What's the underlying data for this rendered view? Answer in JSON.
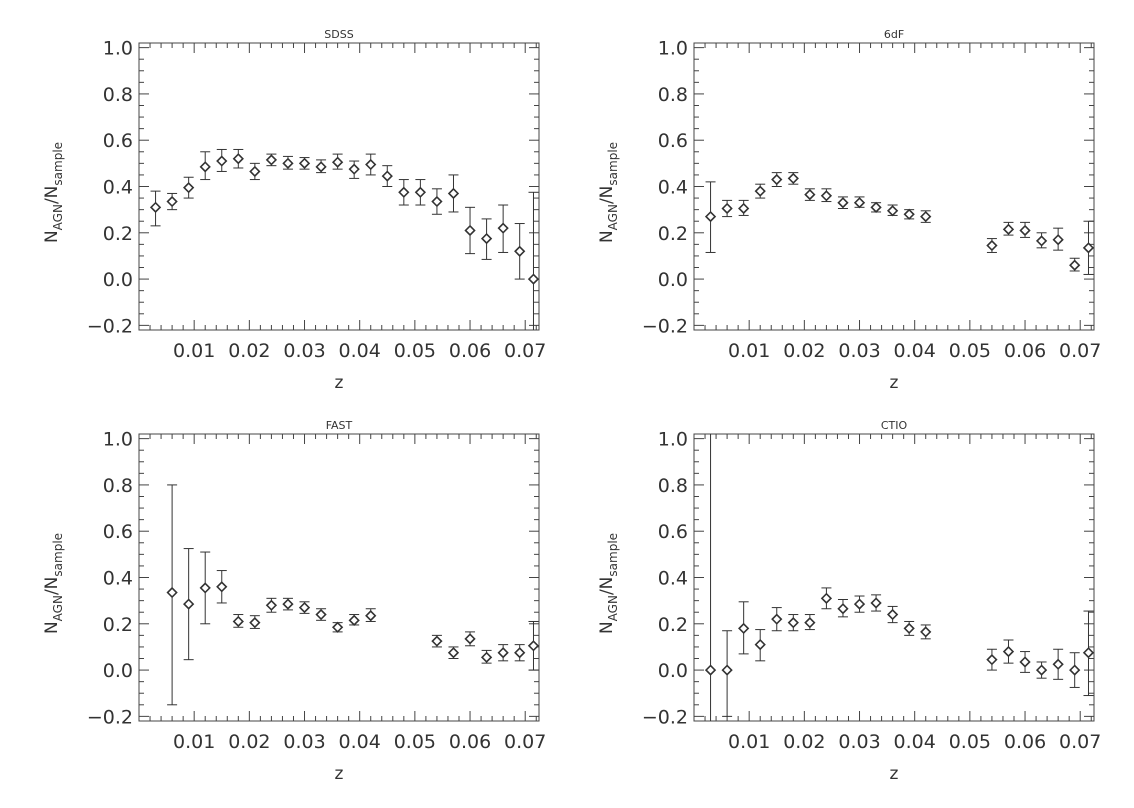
{
  "chart_data": [
    {
      "type": "scatter",
      "title": "SDSS",
      "xlabel": "z",
      "ylabel_main": "N",
      "ylabel_sub1": "AGN",
      "ylabel_sep": "/",
      "ylabel_main2": "N",
      "ylabel_sub2": "sample",
      "xlim": [
        0.0,
        0.0725
      ],
      "ylim": [
        -0.22,
        1.02
      ],
      "xticks": [
        0.01,
        0.02,
        0.03,
        0.04,
        0.05,
        0.06,
        0.07
      ],
      "xtick_labels": [
        "0.01",
        "0.02",
        "0.03",
        "0.04",
        "0.05",
        "0.06",
        "0.07"
      ],
      "yticks": [
        -0.2,
        0.0,
        0.2,
        0.4,
        0.6,
        0.8,
        1.0
      ],
      "ytick_labels": [
        "−0.2",
        "0.0",
        "0.2",
        "0.4",
        "0.6",
        "0.8",
        "1.0"
      ],
      "points": [
        {
          "x": 0.003,
          "y": 0.31,
          "lo": 0.23,
          "hi": 0.38
        },
        {
          "x": 0.006,
          "y": 0.335,
          "lo": 0.3,
          "hi": 0.37
        },
        {
          "x": 0.009,
          "y": 0.395,
          "lo": 0.35,
          "hi": 0.44
        },
        {
          "x": 0.012,
          "y": 0.485,
          "lo": 0.43,
          "hi": 0.55
        },
        {
          "x": 0.015,
          "y": 0.51,
          "lo": 0.465,
          "hi": 0.56
        },
        {
          "x": 0.018,
          "y": 0.52,
          "lo": 0.48,
          "hi": 0.56
        },
        {
          "x": 0.021,
          "y": 0.465,
          "lo": 0.43,
          "hi": 0.5
        },
        {
          "x": 0.024,
          "y": 0.515,
          "lo": 0.49,
          "hi": 0.54
        },
        {
          "x": 0.027,
          "y": 0.5,
          "lo": 0.475,
          "hi": 0.53
        },
        {
          "x": 0.03,
          "y": 0.5,
          "lo": 0.475,
          "hi": 0.525
        },
        {
          "x": 0.033,
          "y": 0.485,
          "lo": 0.46,
          "hi": 0.515
        },
        {
          "x": 0.036,
          "y": 0.505,
          "lo": 0.475,
          "hi": 0.54
        },
        {
          "x": 0.039,
          "y": 0.475,
          "lo": 0.435,
          "hi": 0.51
        },
        {
          "x": 0.042,
          "y": 0.495,
          "lo": 0.45,
          "hi": 0.54
        },
        {
          "x": 0.045,
          "y": 0.445,
          "lo": 0.4,
          "hi": 0.49
        },
        {
          "x": 0.048,
          "y": 0.375,
          "lo": 0.32,
          "hi": 0.43
        },
        {
          "x": 0.051,
          "y": 0.375,
          "lo": 0.32,
          "hi": 0.43
        },
        {
          "x": 0.054,
          "y": 0.335,
          "lo": 0.28,
          "hi": 0.39
        },
        {
          "x": 0.057,
          "y": 0.37,
          "lo": 0.29,
          "hi": 0.45
        },
        {
          "x": 0.06,
          "y": 0.21,
          "lo": 0.11,
          "hi": 0.31
        },
        {
          "x": 0.063,
          "y": 0.175,
          "lo": 0.085,
          "hi": 0.26
        },
        {
          "x": 0.066,
          "y": 0.22,
          "lo": 0.115,
          "hi": 0.32
        },
        {
          "x": 0.069,
          "y": 0.12,
          "lo": 0.0,
          "hi": 0.24
        },
        {
          "x": 0.0715,
          "y": 0.0,
          "lo": -0.22,
          "hi": 0.375
        }
      ]
    },
    {
      "type": "scatter",
      "title": "6dF",
      "xlabel": "z",
      "ylabel_main": "N",
      "ylabel_sub1": "AGN",
      "ylabel_sep": "/",
      "ylabel_main2": "N",
      "ylabel_sub2": "sample",
      "xlim": [
        0.0,
        0.0725
      ],
      "ylim": [
        -0.22,
        1.02
      ],
      "xticks": [
        0.01,
        0.02,
        0.03,
        0.04,
        0.05,
        0.06,
        0.07
      ],
      "xtick_labels": [
        "0.01",
        "0.02",
        "0.03",
        "0.04",
        "0.05",
        "0.06",
        "0.07"
      ],
      "yticks": [
        -0.2,
        0.0,
        0.2,
        0.4,
        0.6,
        0.8,
        1.0
      ],
      "ytick_labels": [
        "−0.2",
        "0.0",
        "0.2",
        "0.4",
        "0.6",
        "0.8",
        "1.0"
      ],
      "points": [
        {
          "x": 0.003,
          "y": 0.27,
          "lo": 0.115,
          "hi": 0.42
        },
        {
          "x": 0.006,
          "y": 0.305,
          "lo": 0.27,
          "hi": 0.34
        },
        {
          "x": 0.009,
          "y": 0.305,
          "lo": 0.275,
          "hi": 0.34
        },
        {
          "x": 0.012,
          "y": 0.38,
          "lo": 0.35,
          "hi": 0.41
        },
        {
          "x": 0.015,
          "y": 0.43,
          "lo": 0.4,
          "hi": 0.46
        },
        {
          "x": 0.018,
          "y": 0.435,
          "lo": 0.41,
          "hi": 0.46
        },
        {
          "x": 0.021,
          "y": 0.365,
          "lo": 0.34,
          "hi": 0.39
        },
        {
          "x": 0.024,
          "y": 0.36,
          "lo": 0.335,
          "hi": 0.39
        },
        {
          "x": 0.027,
          "y": 0.33,
          "lo": 0.305,
          "hi": 0.355
        },
        {
          "x": 0.03,
          "y": 0.33,
          "lo": 0.31,
          "hi": 0.355
        },
        {
          "x": 0.033,
          "y": 0.31,
          "lo": 0.29,
          "hi": 0.33
        },
        {
          "x": 0.036,
          "y": 0.295,
          "lo": 0.275,
          "hi": 0.32
        },
        {
          "x": 0.039,
          "y": 0.28,
          "lo": 0.26,
          "hi": 0.3
        },
        {
          "x": 0.042,
          "y": 0.27,
          "lo": 0.245,
          "hi": 0.295
        },
        {
          "x": 0.054,
          "y": 0.145,
          "lo": 0.115,
          "hi": 0.175
        },
        {
          "x": 0.057,
          "y": 0.215,
          "lo": 0.19,
          "hi": 0.245
        },
        {
          "x": 0.06,
          "y": 0.21,
          "lo": 0.18,
          "hi": 0.245
        },
        {
          "x": 0.063,
          "y": 0.165,
          "lo": 0.135,
          "hi": 0.2
        },
        {
          "x": 0.066,
          "y": 0.17,
          "lo": 0.125,
          "hi": 0.22
        },
        {
          "x": 0.069,
          "y": 0.06,
          "lo": 0.035,
          "hi": 0.09
        },
        {
          "x": 0.0715,
          "y": 0.135,
          "lo": 0.02,
          "hi": 0.25
        }
      ]
    },
    {
      "type": "scatter",
      "title": "FAST",
      "xlabel": "z",
      "ylabel_main": "N",
      "ylabel_sub1": "AGN",
      "ylabel_sep": "/",
      "ylabel_main2": "N",
      "ylabel_sub2": "sample",
      "xlim": [
        0.0,
        0.0725
      ],
      "ylim": [
        -0.22,
        1.02
      ],
      "xticks": [
        0.01,
        0.02,
        0.03,
        0.04,
        0.05,
        0.06,
        0.07
      ],
      "xtick_labels": [
        "0.01",
        "0.02",
        "0.03",
        "0.04",
        "0.05",
        "0.06",
        "0.07"
      ],
      "yticks": [
        -0.2,
        0.0,
        0.2,
        0.4,
        0.6,
        0.8,
        1.0
      ],
      "ytick_labels": [
        "−0.2",
        "0.0",
        "0.2",
        "0.4",
        "0.6",
        "0.8",
        "1.0"
      ],
      "points": [
        {
          "x": 0.006,
          "y": 0.335,
          "lo": -0.15,
          "hi": 0.8
        },
        {
          "x": 0.009,
          "y": 0.285,
          "lo": 0.045,
          "hi": 0.525
        },
        {
          "x": 0.012,
          "y": 0.355,
          "lo": 0.2,
          "hi": 0.51
        },
        {
          "x": 0.015,
          "y": 0.36,
          "lo": 0.29,
          "hi": 0.43
        },
        {
          "x": 0.018,
          "y": 0.21,
          "lo": 0.185,
          "hi": 0.24
        },
        {
          "x": 0.021,
          "y": 0.205,
          "lo": 0.18,
          "hi": 0.235
        },
        {
          "x": 0.024,
          "y": 0.28,
          "lo": 0.25,
          "hi": 0.31
        },
        {
          "x": 0.027,
          "y": 0.285,
          "lo": 0.26,
          "hi": 0.31
        },
        {
          "x": 0.03,
          "y": 0.27,
          "lo": 0.245,
          "hi": 0.295
        },
        {
          "x": 0.033,
          "y": 0.24,
          "lo": 0.215,
          "hi": 0.265
        },
        {
          "x": 0.036,
          "y": 0.185,
          "lo": 0.165,
          "hi": 0.205
        },
        {
          "x": 0.039,
          "y": 0.215,
          "lo": 0.195,
          "hi": 0.24
        },
        {
          "x": 0.042,
          "y": 0.235,
          "lo": 0.21,
          "hi": 0.265
        },
        {
          "x": 0.054,
          "y": 0.125,
          "lo": 0.1,
          "hi": 0.15
        },
        {
          "x": 0.057,
          "y": 0.075,
          "lo": 0.05,
          "hi": 0.1
        },
        {
          "x": 0.06,
          "y": 0.135,
          "lo": 0.105,
          "hi": 0.165
        },
        {
          "x": 0.063,
          "y": 0.055,
          "lo": 0.03,
          "hi": 0.085
        },
        {
          "x": 0.066,
          "y": 0.075,
          "lo": 0.04,
          "hi": 0.11
        },
        {
          "x": 0.069,
          "y": 0.075,
          "lo": 0.04,
          "hi": 0.11
        },
        {
          "x": 0.0715,
          "y": 0.105,
          "lo": 0.0,
          "hi": 0.21
        }
      ]
    },
    {
      "type": "scatter",
      "title": "CTIO",
      "xlabel": "z",
      "ylabel_main": "N",
      "ylabel_sub1": "AGN",
      "ylabel_sep": "/",
      "ylabel_main2": "N",
      "ylabel_sub2": "sample",
      "xlim": [
        0.0,
        0.0725
      ],
      "ylim": [
        -0.22,
        1.02
      ],
      "xticks": [
        0.01,
        0.02,
        0.03,
        0.04,
        0.05,
        0.06,
        0.07
      ],
      "xtick_labels": [
        "0.01",
        "0.02",
        "0.03",
        "0.04",
        "0.05",
        "0.06",
        "0.07"
      ],
      "yticks": [
        -0.2,
        0.0,
        0.2,
        0.4,
        0.6,
        0.8,
        1.0
      ],
      "ytick_labels": [
        "−0.2",
        "0.0",
        "0.2",
        "0.4",
        "0.6",
        "0.8",
        "1.0"
      ],
      "points": [
        {
          "x": 0.003,
          "y": 0.0,
          "lo": -0.22,
          "hi": 1.02
        },
        {
          "x": 0.006,
          "y": 0.0,
          "lo": -0.2,
          "hi": 0.17
        },
        {
          "x": 0.009,
          "y": 0.18,
          "lo": 0.07,
          "hi": 0.295
        },
        {
          "x": 0.012,
          "y": 0.11,
          "lo": 0.04,
          "hi": 0.175
        },
        {
          "x": 0.015,
          "y": 0.22,
          "lo": 0.17,
          "hi": 0.27
        },
        {
          "x": 0.018,
          "y": 0.205,
          "lo": 0.17,
          "hi": 0.24
        },
        {
          "x": 0.021,
          "y": 0.205,
          "lo": 0.175,
          "hi": 0.24
        },
        {
          "x": 0.024,
          "y": 0.31,
          "lo": 0.265,
          "hi": 0.355
        },
        {
          "x": 0.027,
          "y": 0.265,
          "lo": 0.23,
          "hi": 0.305
        },
        {
          "x": 0.03,
          "y": 0.285,
          "lo": 0.25,
          "hi": 0.32
        },
        {
          "x": 0.033,
          "y": 0.29,
          "lo": 0.255,
          "hi": 0.325
        },
        {
          "x": 0.036,
          "y": 0.24,
          "lo": 0.205,
          "hi": 0.275
        },
        {
          "x": 0.039,
          "y": 0.18,
          "lo": 0.15,
          "hi": 0.21
        },
        {
          "x": 0.042,
          "y": 0.165,
          "lo": 0.135,
          "hi": 0.195
        },
        {
          "x": 0.054,
          "y": 0.045,
          "lo": 0.0,
          "hi": 0.09
        },
        {
          "x": 0.057,
          "y": 0.08,
          "lo": 0.03,
          "hi": 0.13
        },
        {
          "x": 0.06,
          "y": 0.035,
          "lo": -0.01,
          "hi": 0.08
        },
        {
          "x": 0.063,
          "y": 0.0,
          "lo": -0.035,
          "hi": 0.035
        },
        {
          "x": 0.066,
          "y": 0.025,
          "lo": -0.04,
          "hi": 0.09
        },
        {
          "x": 0.069,
          "y": 0.0,
          "lo": -0.075,
          "hi": 0.075
        },
        {
          "x": 0.0715,
          "y": 0.075,
          "lo": -0.11,
          "hi": 0.255
        }
      ]
    }
  ]
}
